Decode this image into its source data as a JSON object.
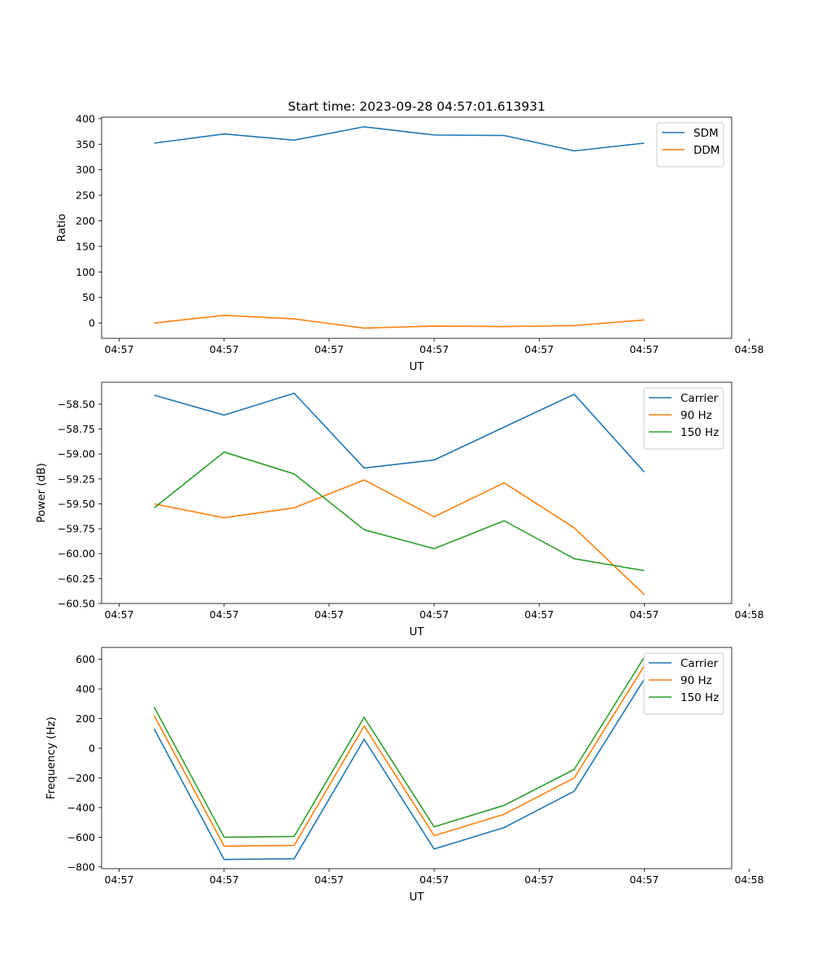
{
  "chart_data": [
    {
      "type": "line",
      "title": "Start time: 2023-09-28 04:57:01.613931",
      "xlabel": "UT",
      "ylabel": "Ratio",
      "x": [
        1,
        2,
        3,
        4,
        5,
        6,
        7,
        8
      ],
      "xlim": [
        0.25,
        9.25
      ],
      "x_ticks": [
        0.5,
        2,
        3.5,
        5,
        6.5,
        8,
        9.5
      ],
      "x_tick_labels": [
        "04:57",
        "04:57",
        "04:57",
        "04:57",
        "04:57",
        "04:57",
        "04:58"
      ],
      "ylim": [
        -30,
        403
      ],
      "y_ticks": [
        0,
        50,
        100,
        150,
        200,
        250,
        300,
        350,
        400
      ],
      "y_tick_labels": [
        "0",
        "50",
        "100",
        "150",
        "200",
        "250",
        "300",
        "350",
        "400"
      ],
      "legend_position": "top-right",
      "series": [
        {
          "name": "SDM",
          "color": "#1f77b4",
          "values": [
            352,
            370,
            358,
            384,
            368,
            367,
            337,
            352
          ]
        },
        {
          "name": "DDM",
          "color": "#ff7f0e",
          "values": [
            0,
            15,
            8,
            -10,
            -6,
            -7,
            -5,
            6
          ]
        }
      ]
    },
    {
      "type": "line",
      "title": "",
      "xlabel": "UT",
      "ylabel": "Power (dB)",
      "x": [
        1,
        2,
        3,
        4,
        5,
        6,
        7,
        8
      ],
      "xlim": [
        0.25,
        9.25
      ],
      "x_ticks": [
        0.5,
        2,
        3.5,
        5,
        6.5,
        8,
        9.5
      ],
      "x_tick_labels": [
        "04:57",
        "04:57",
        "04:57",
        "04:57",
        "04:57",
        "04:57",
        "04:58"
      ],
      "ylim": [
        -60.5,
        -58.28
      ],
      "y_ticks": [
        -60.5,
        -60.25,
        -60.0,
        -59.75,
        -59.5,
        -59.25,
        -59.0,
        -58.75,
        -58.5
      ],
      "y_tick_labels": [
        "−60.50",
        "−60.25",
        "−60.00",
        "−59.75",
        "−59.50",
        "−59.25",
        "−59.00",
        "−58.75",
        "−58.50"
      ],
      "legend_position": "top-right",
      "series": [
        {
          "name": "Carrier",
          "color": "#1f77b4",
          "values": [
            -58.41,
            -58.61,
            -58.39,
            -59.14,
            -59.06,
            -58.73,
            -58.4,
            -59.18
          ]
        },
        {
          "name": "90 Hz",
          "color": "#ff7f0e",
          "values": [
            -59.5,
            -59.64,
            -59.54,
            -59.26,
            -59.63,
            -59.29,
            -59.74,
            -60.41
          ]
        },
        {
          "name": "150 Hz",
          "color": "#2ca02c",
          "values": [
            -59.54,
            -58.98,
            -59.2,
            -59.76,
            -59.95,
            -59.67,
            -60.05,
            -60.17
          ]
        }
      ]
    },
    {
      "type": "line",
      "title": "",
      "xlabel": "UT",
      "ylabel": "Frequency (Hz)",
      "x": [
        1,
        2,
        3,
        4,
        5,
        6,
        7,
        8
      ],
      "xlim": [
        0.25,
        9.25
      ],
      "x_ticks": [
        0.5,
        2,
        3.5,
        5,
        6.5,
        8,
        9.5
      ],
      "x_tick_labels": [
        "04:57",
        "04:57",
        "04:57",
        "04:57",
        "04:57",
        "04:57",
        "04:58"
      ],
      "ylim": [
        -812,
        680
      ],
      "y_ticks": [
        -800,
        -600,
        -400,
        -200,
        0,
        200,
        400,
        600
      ],
      "y_tick_labels": [
        "−800",
        "−600",
        "−400",
        "−200",
        "0",
        "200",
        "400",
        "600"
      ],
      "legend_position": "top-right",
      "series": [
        {
          "name": "Carrier",
          "color": "#1f77b4",
          "values": [
            130,
            -750,
            -745,
            60,
            -680,
            -535,
            -290,
            465
          ]
        },
        {
          "name": "90 Hz",
          "color": "#ff7f0e",
          "values": [
            220,
            -660,
            -655,
            150,
            -590,
            -445,
            -200,
            555
          ]
        },
        {
          "name": "150 Hz",
          "color": "#2ca02c",
          "values": [
            278,
            -600,
            -595,
            208,
            -530,
            -385,
            -143,
            613
          ]
        }
      ]
    }
  ]
}
